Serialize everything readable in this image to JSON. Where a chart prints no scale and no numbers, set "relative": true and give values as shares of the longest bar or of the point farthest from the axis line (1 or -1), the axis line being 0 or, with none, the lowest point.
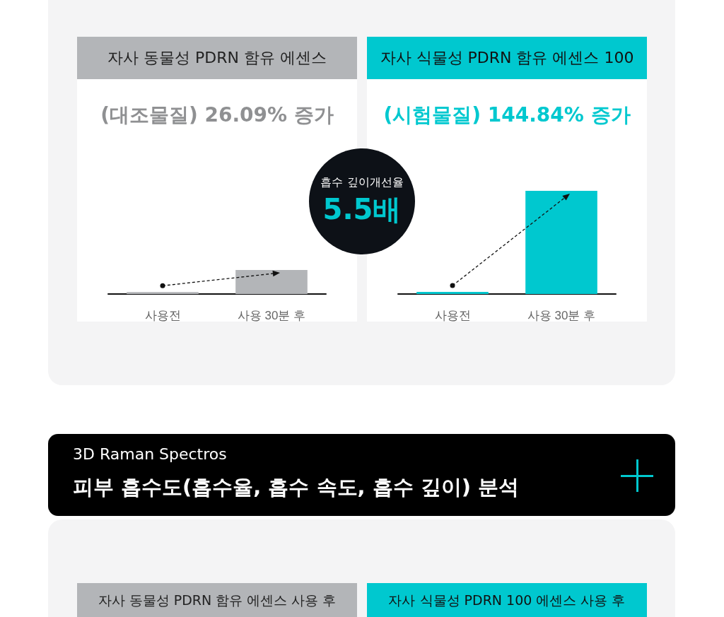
{
  "chart_data": [
    {
      "type": "bar",
      "title": "자사 동물성 PDRN 함유 에센스",
      "subtitle": "(대조물질) 26.09% 증가",
      "categories": [
        "사용전",
        "사용 30분 후"
      ],
      "relative": true,
      "values": [
        0.08,
        1
      ],
      "colors": [
        "#b3b5b8",
        "#b3b5b8"
      ]
    },
    {
      "type": "bar",
      "title": "자사 식물성 PDRN 함유 에센스 100",
      "subtitle": "(시험물질) 144.84% 증가",
      "categories": [
        "사용전",
        "사용 30분 후"
      ],
      "relative": true,
      "values": [
        0.02,
        1
      ],
      "colors": [
        "#00c8cf",
        "#00c8cf"
      ]
    },
    {
      "type": "other",
      "annotations": [
        "흡수 깊이개선율",
        "5.5배",
        "3D Raman Spectros",
        "피부 흡수도(흡수율, 흡수 속도, 흡수 깊이) 분석",
        "자사 동물성 PDRN 함유 에센스 사용 후",
        "자사 식물성 PDRN 100 에센스 사용 후"
      ]
    }
  ]
}
